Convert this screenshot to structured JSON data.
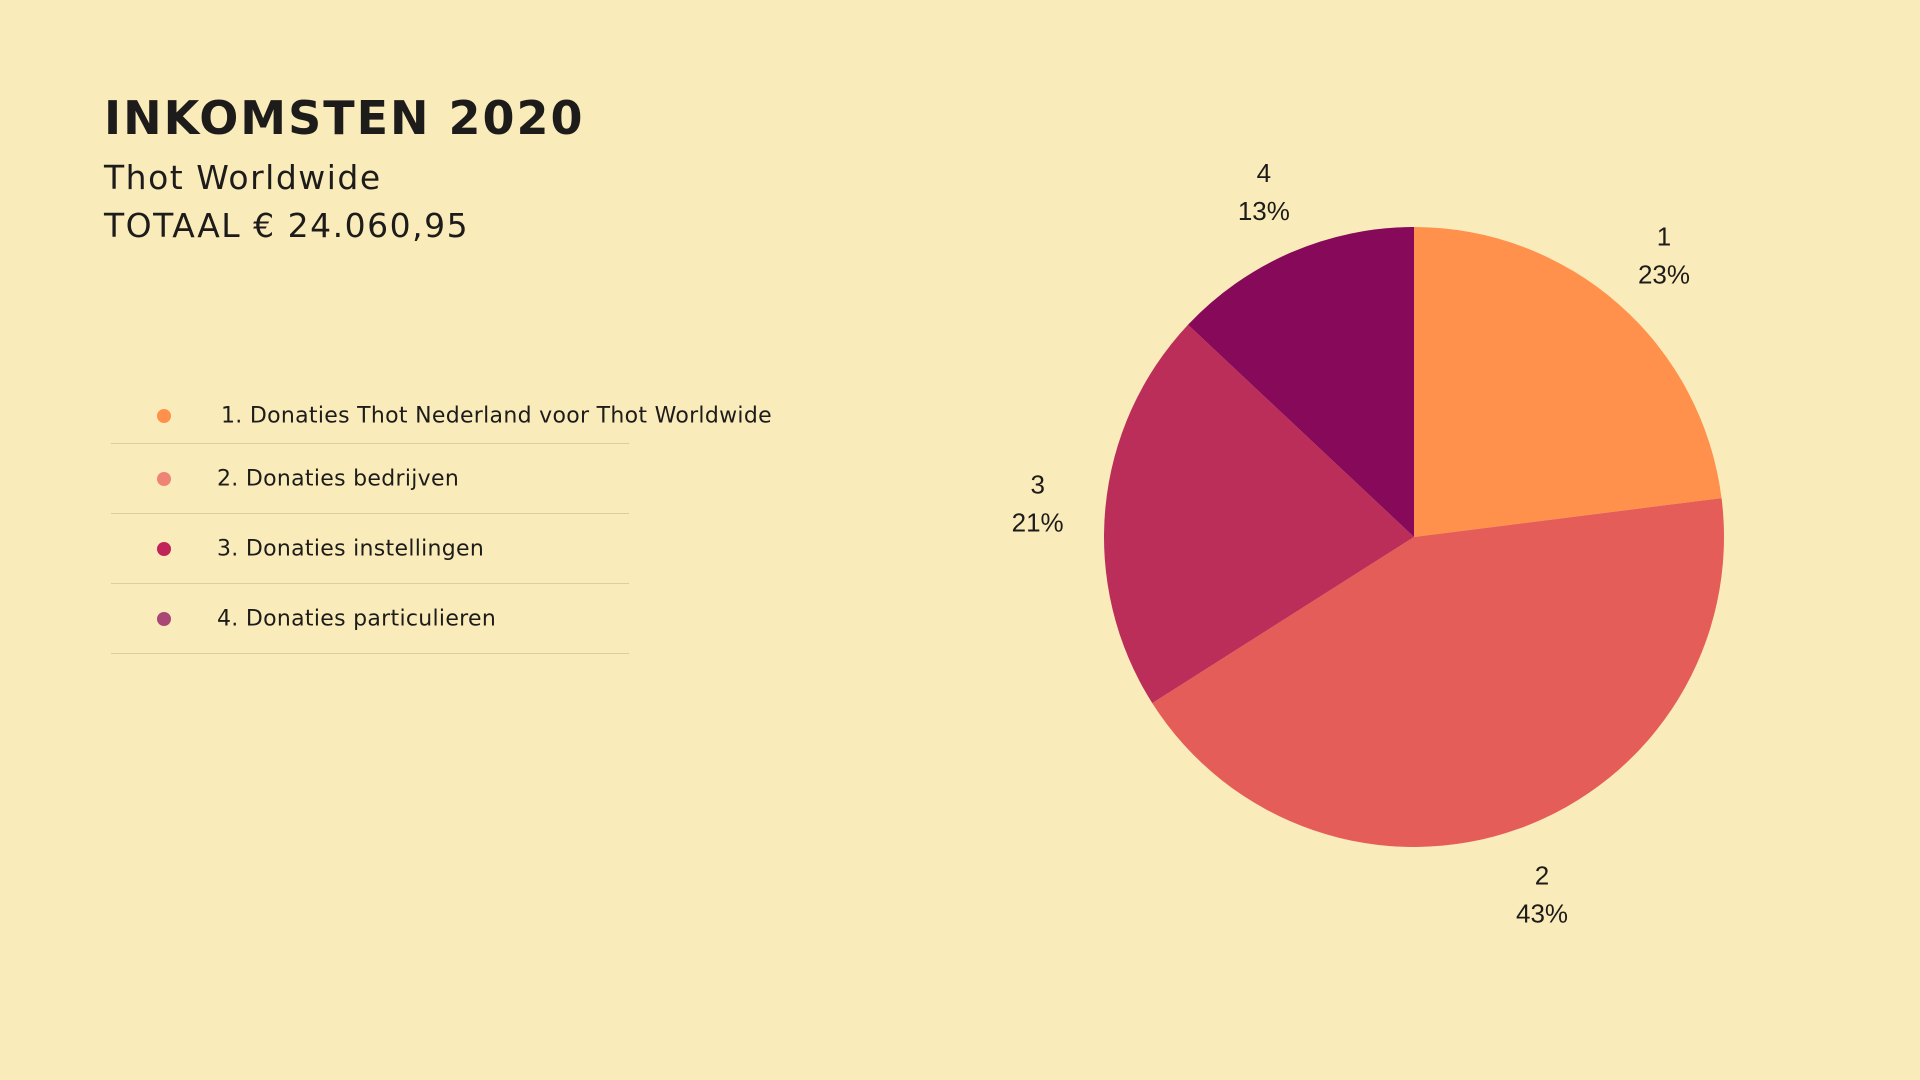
{
  "header": {
    "title": "INKOMSTEN 2020",
    "subtitle": "Thot Worldwide",
    "total": "TOTAAL € 24.060,95"
  },
  "legend": {
    "items": [
      {
        "label": "1. Donaties Thot Nederland voor Thot Worldwide",
        "color": "#ff914d"
      },
      {
        "label": "2. Donaties bedrijven",
        "color": "#ef8375"
      },
      {
        "label": "3. Donaties instellingen",
        "color": "#c0245a"
      },
      {
        "label": "4. Donaties particulieren",
        "color": "#a94775"
      }
    ]
  },
  "chart_data": {
    "type": "pie",
    "categories": [
      "1",
      "2",
      "3",
      "4"
    ],
    "values": [
      23,
      43,
      21,
      13
    ],
    "value_labels": [
      "23%",
      "43%",
      "21%",
      "13%"
    ],
    "colors": [
      "#ff914d",
      "#e55d59",
      "#bb2e5a",
      "#870a5a"
    ],
    "start": "12 o'clock",
    "direction": "clockwise"
  }
}
